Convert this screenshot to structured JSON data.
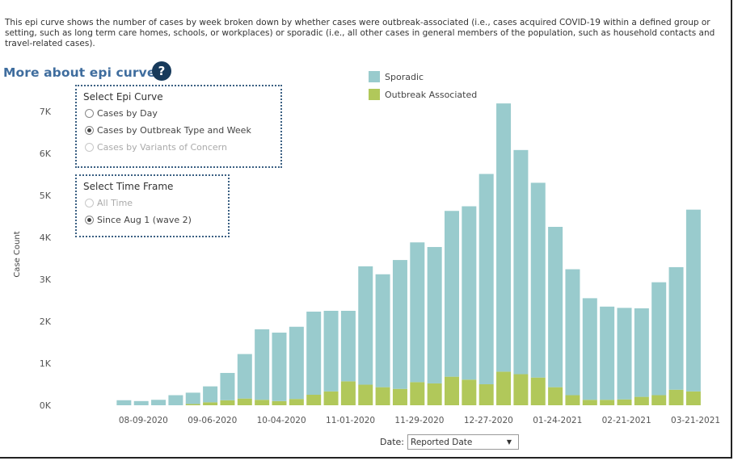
{
  "intro_text": "This epi curve shows the number of cases by week broken down by whether cases were outbreak-associated (i.e., cases acquired COVID-19 within a defined group or setting, such as long term care homes, schools, or workplaces) or sporadic (i.e., all other cases in general members of the population, such as household contacts and travel-related cases).",
  "more_link": "More about epi curves",
  "help_icon": "?",
  "legend": [
    {
      "label": "Sporadic",
      "color": "#99cbcd"
    },
    {
      "label": "Outbreak Associated",
      "color": "#b1c85a"
    }
  ],
  "epi_panel": {
    "title": "Select Epi Curve",
    "options": [
      {
        "label": "Cases by Day",
        "selected": false,
        "enabled": true
      },
      {
        "label": "Cases by Outbreak Type and Week",
        "selected": true,
        "enabled": true
      },
      {
        "label": "Cases by Variants of Concern",
        "selected": false,
        "enabled": false
      }
    ]
  },
  "time_panel": {
    "title": "Select Time Frame",
    "options": [
      {
        "label": "All Time",
        "selected": false,
        "enabled": false
      },
      {
        "label": "Since Aug 1 (wave 2)",
        "selected": true,
        "enabled": true
      }
    ]
  },
  "date_filter": {
    "label": "Date:",
    "value": "Reported Date"
  },
  "chart_data": {
    "type": "bar",
    "stacked": true,
    "ylabel": "Case Count",
    "xlabel": "",
    "ylim": [
      0,
      7500
    ],
    "yticks": [
      0,
      1000,
      2000,
      3000,
      4000,
      5000,
      6000,
      7000
    ],
    "ytick_labels": [
      "0K",
      "1K",
      "2K",
      "3K",
      "4K",
      "5K",
      "6K",
      "7K"
    ],
    "grid": false,
    "legend_position": "top-center",
    "categories": [
      "08-02-2020",
      "08-09-2020",
      "08-16-2020",
      "08-23-2020",
      "08-30-2020",
      "09-06-2020",
      "09-13-2020",
      "09-20-2020",
      "09-27-2020",
      "10-04-2020",
      "10-11-2020",
      "10-18-2020",
      "10-25-2020",
      "11-01-2020",
      "11-08-2020",
      "11-15-2020",
      "11-22-2020",
      "11-29-2020",
      "12-06-2020",
      "12-13-2020",
      "12-20-2020",
      "12-27-2020",
      "01-03-2021",
      "01-10-2021",
      "01-17-2021",
      "01-24-2021",
      "01-31-2021",
      "02-07-2021",
      "02-14-2021",
      "02-21-2021",
      "02-28-2021",
      "03-07-2021",
      "03-14-2021",
      "03-21-2021",
      "03-28-2021"
    ],
    "xtick_labels": [
      "08-09-2020",
      "09-06-2020",
      "10-04-2020",
      "11-01-2020",
      "11-29-2020",
      "12-27-2020",
      "01-24-2021",
      "02-21-2021",
      "03-21-2021"
    ],
    "series": [
      {
        "name": "Outbreak Associated",
        "values": [
          0,
          0,
          0,
          0,
          0,
          30,
          70,
          120,
          160,
          130,
          100,
          150,
          250,
          330,
          570,
          490,
          430,
          390,
          550,
          520,
          680,
          610,
          500,
          800,
          740,
          660,
          430,
          240,
          130,
          130,
          140,
          200,
          240,
          370,
          330
        ]
      },
      {
        "name": "Sporadic",
        "values": [
          0,
          120,
          100,
          130,
          240,
          270,
          380,
          650,
          1060,
          1680,
          1630,
          1720,
          1980,
          1920,
          1680,
          2820,
          2690,
          3070,
          3330,
          3250,
          3950,
          4130,
          5010,
          6390,
          5340,
          4640,
          3820,
          3000,
          2420,
          2220,
          2180,
          2110,
          2690,
          2920,
          4330
        ]
      }
    ]
  }
}
